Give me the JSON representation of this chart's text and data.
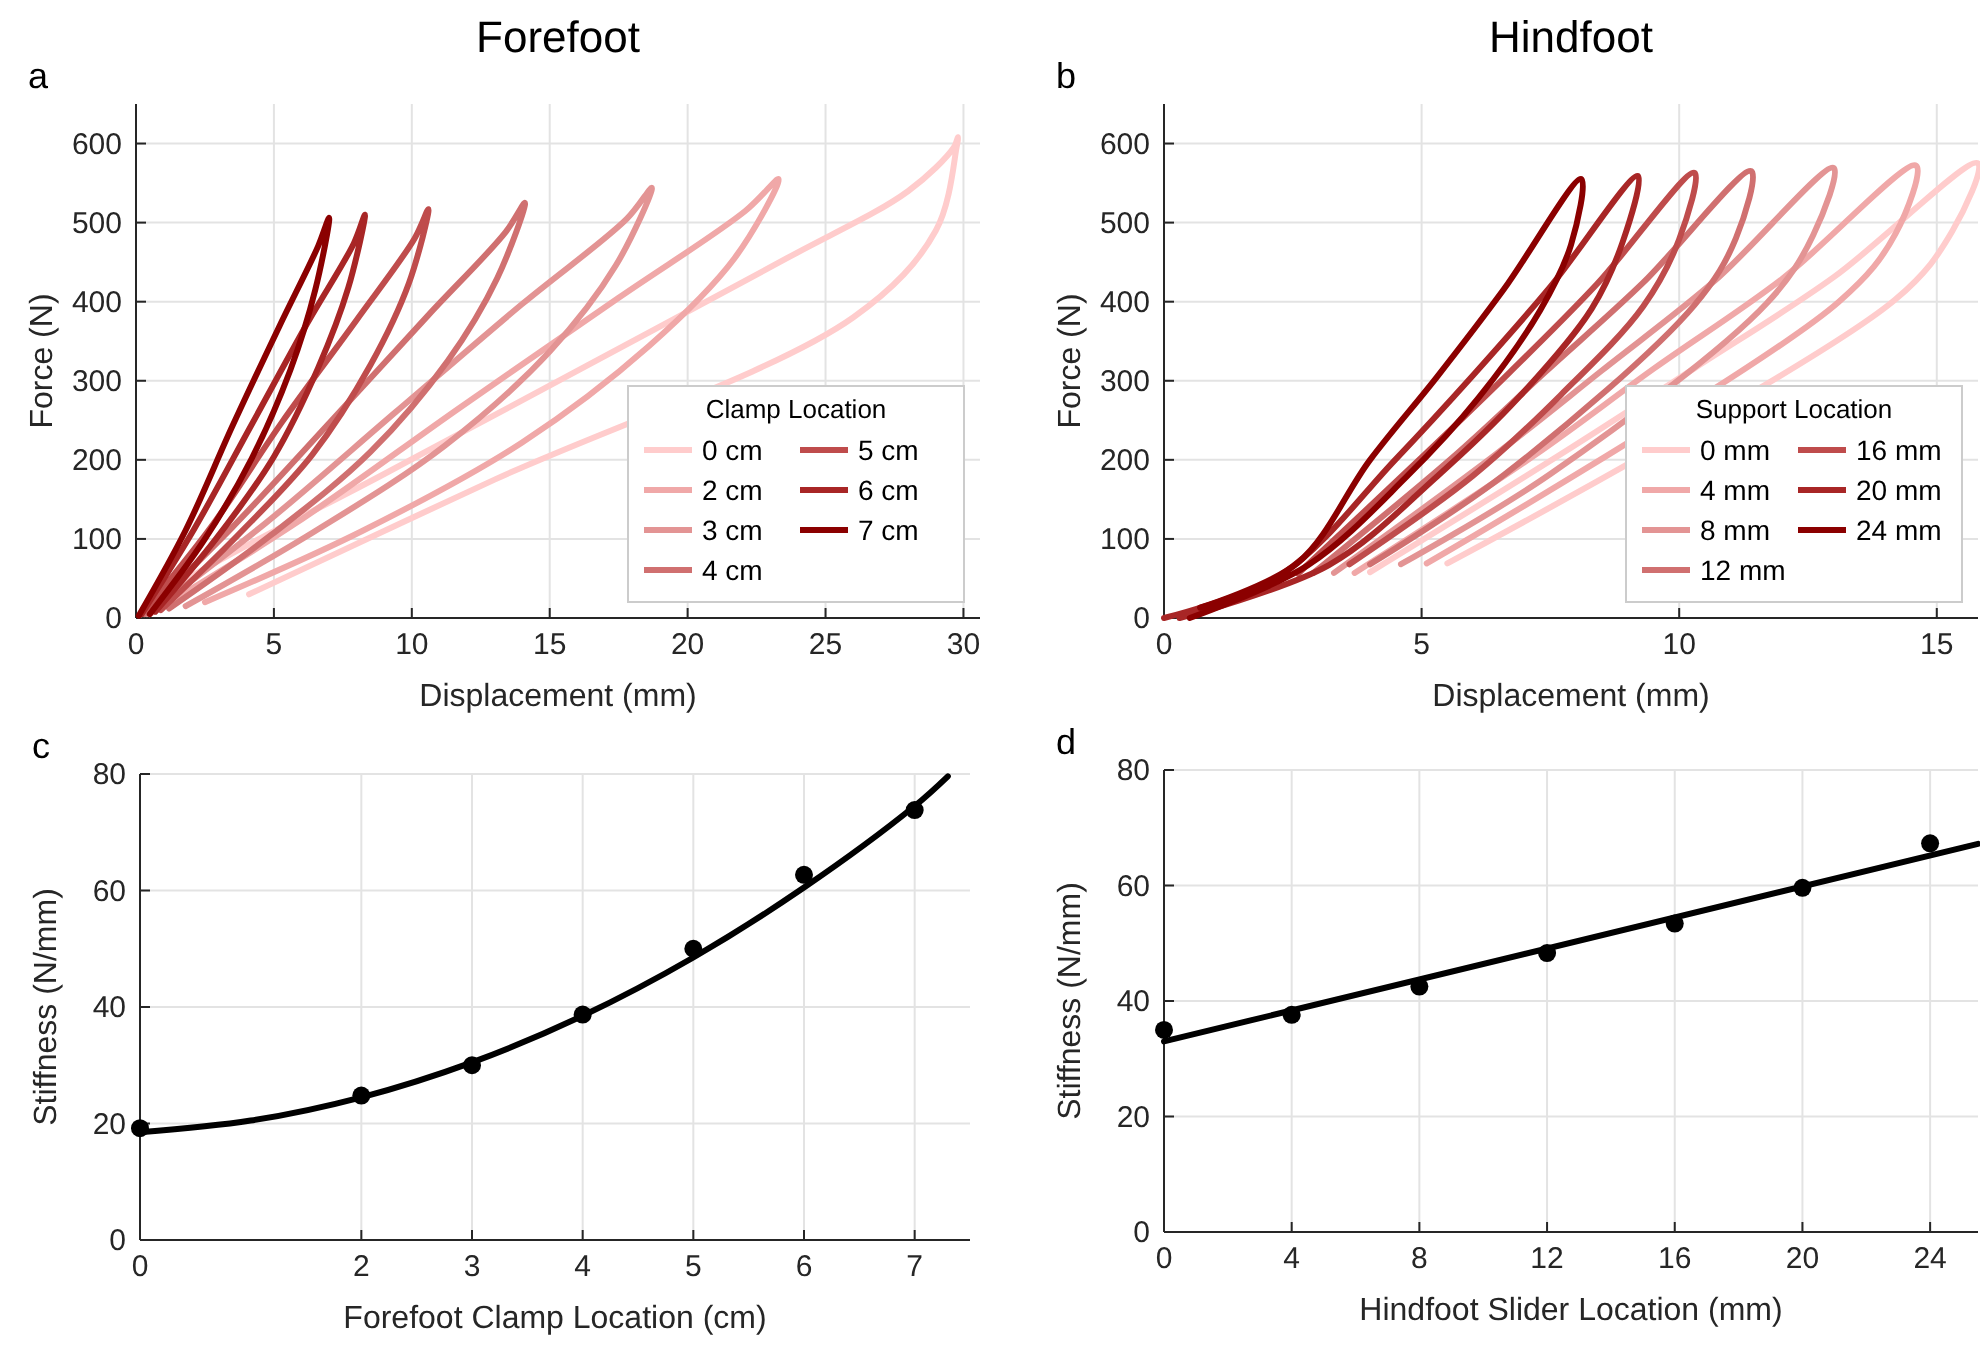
{
  "chart_data": [
    {
      "type": "line",
      "title": "Forefoot",
      "xlabel": "Displacement (mm)",
      "ylabel": "Force (N)",
      "annotations": [
        "a"
      ],
      "xlim": [
        0,
        30.6
      ],
      "ylim": [
        0,
        650
      ],
      "xticks": [
        0,
        5,
        10,
        15,
        20,
        25,
        30
      ],
      "yticks": [
        0,
        100,
        200,
        300,
        400,
        500,
        600
      ],
      "grid": true,
      "legend": "bottom right",
      "legend_title": "Clamp Location",
      "line_style": "solid",
      "series": [
        {
          "name": "0 cm",
          "color": "#ffcccc",
          "x": [
            4.1,
            13,
            26,
            29,
            29.75,
            29.8,
            29.65,
            28,
            23.6,
            16.4,
            9.1,
            1.8,
            0.2
          ],
          "values": [
            30,
            175,
            380,
            490,
            595,
            608,
            595,
            540,
            455,
            320,
            184,
            48,
            5
          ]
        },
        {
          "name": "2 cm",
          "color": "#f0a8a8",
          "x": [
            2.5,
            8.2,
            14,
            18.6,
            21.7,
            23.3,
            22.1,
            17.5,
            11.7,
            5.8,
            0.5
          ],
          "values": [
            20,
            110,
            222,
            344,
            455,
            555,
            515,
            405,
            265,
            120,
            5
          ]
        },
        {
          "name": "3 cm",
          "color": "#e39494",
          "x": [
            1.8,
            6.5,
            11.2,
            15,
            17.4,
            18.7,
            17.8,
            14,
            9.4,
            4.7,
            0.4
          ],
          "values": [
            15,
            110,
            218,
            337,
            446,
            544,
            505,
            397,
            260,
            120,
            5
          ]
        },
        {
          "name": "4 cm",
          "color": "#d07070",
          "x": [
            1.2,
            4.9,
            8.5,
            11.3,
            13.1,
            14.1,
            13.4,
            10.6,
            7.1,
            3.5,
            0.3
          ],
          "values": [
            12,
            105,
            210,
            325,
            430,
            525,
            488,
            383,
            250,
            115,
            5
          ]
        },
        {
          "name": "5 cm",
          "color": "#bf4c4c",
          "x": [
            0.9,
            3.7,
            6.4,
            8.5,
            9.9,
            10.6,
            10.1,
            8,
            5.3,
            2.7,
            0.2
          ],
          "values": [
            10,
            105,
            207,
            320,
            424,
            517,
            480,
            377,
            248,
            114,
            5
          ]
        },
        {
          "name": "6 cm",
          "color": "#a82626",
          "x": [
            0.7,
            2.9,
            5,
            6.6,
            7.7,
            8.3,
            7.9,
            6.2,
            4.2,
            2.1,
            0.2
          ],
          "values": [
            8,
            100,
            204,
            316,
            418,
            510,
            474,
            372,
            245,
            112,
            5
          ]
        },
        {
          "name": "7 cm",
          "color": "#8b0000",
          "x": [
            0.5,
            2.5,
            4.2,
            5.6,
            6.5,
            7,
            6.6,
            5.2,
            3.5,
            1.8,
            0.1
          ],
          "values": [
            5,
            100,
            202,
            314,
            415,
            506,
            470,
            369,
            243,
            111,
            3
          ]
        }
      ]
    },
    {
      "type": "line",
      "title": "Hindfoot",
      "xlabel": "Displacement (mm)",
      "ylabel": "Force (N)",
      "annotations": [
        "b"
      ],
      "xlim": [
        0,
        15.8
      ],
      "ylim": [
        0,
        650
      ],
      "xticks": [
        0,
        5,
        10,
        15
      ],
      "yticks": [
        0,
        100,
        200,
        300,
        400,
        500,
        600
      ],
      "grid": true,
      "legend": "bottom right",
      "legend_title": "Support Location",
      "line_style": "solid",
      "series": [
        {
          "name": "0 mm",
          "color": "#ffcccc",
          "x": [
            4,
            7.7,
            10.3,
            13,
            15.8,
            15.3,
            14.2,
            5.5
          ],
          "values": [
            58,
            207,
            316,
            431,
            575,
            489,
            403,
            69
          ]
        },
        {
          "name": "4 mm",
          "color": "#f0a8a8",
          "x": [
            3.7,
            7.2,
            9.5,
            12,
            14.6,
            14.2,
            13.1,
            5.1
          ],
          "values": [
            57,
            206,
            315,
            429,
            572,
            486,
            400,
            69
          ]
        },
        {
          "name": "8 mm",
          "color": "#e39494",
          "x": [
            3.3,
            6.4,
            8.5,
            10.7,
            13,
            12.6,
            11.7,
            7.5,
            4.6
          ],
          "values": [
            57,
            205,
            313,
            427,
            569,
            484,
            398,
            182,
            68
          ]
        },
        {
          "name": "12 mm",
          "color": "#d07070",
          "x": [
            2.9,
            5.6,
            7.4,
            9.3,
            11.4,
            11.1,
            10.3,
            6.6,
            4
          ],
          "values": [
            57,
            203,
            311,
            424,
            565,
            480,
            396,
            181,
            68
          ]
        },
        {
          "name": "16 mm",
          "color": "#bf4c4c",
          "x": [
            2.6,
            5,
            6.7,
            8.4,
            10.3,
            10,
            9.3,
            7.7,
            6,
            3.6
          ],
          "values": [
            56,
            203,
            310,
            422,
            563,
            479,
            394,
            282,
            180,
            68
          ]
        },
        {
          "name": "20 mm",
          "color": "#a82626",
          "x": [
            0,
            2.3,
            4.5,
            6,
            7.5,
            9.2,
            8.9,
            8.3,
            6.9,
            5.3,
            3.2,
            0.3
          ],
          "values": [
            0,
            56,
            201,
            307,
            419,
            559,
            475,
            391,
            280,
            179,
            67,
            0
          ]
        },
        {
          "name": "24 mm",
          "color": "#8b0000",
          "x": [
            0.7,
            2.6,
            4,
            5.3,
            6.6,
            8.1,
            7.9,
            7.3,
            6.1,
            4.7,
            2.8,
            0.5
          ],
          "values": [
            13,
            70,
            200,
            305,
            416,
            555,
            472,
            389,
            278,
            178,
            67,
            0
          ]
        }
      ]
    },
    {
      "type": "scatter",
      "xlabel": "Forefoot Clamp Location (cm)",
      "ylabel": "Stiffness (N/mm)",
      "annotations": [
        "c"
      ],
      "xlim": [
        0,
        7.5
      ],
      "ylim": [
        0,
        80
      ],
      "xticks": [
        0,
        2,
        3,
        4,
        5,
        6,
        7
      ],
      "yticks": [
        0,
        20,
        40,
        60,
        80
      ],
      "grid": true,
      "series": [
        {
          "color": "#000000",
          "marker": "circle",
          "x": [
            0,
            2,
            3,
            4,
            5,
            6,
            7
          ],
          "values": [
            19.2,
            24.8,
            30,
            38.7,
            50,
            62.7,
            73.8
          ]
        },
        {
          "type": "line",
          "color": "#000000",
          "x": [
            0,
            1,
            2,
            3,
            4,
            5,
            6,
            7,
            7.3
          ],
          "values": [
            18.5,
            20.5,
            24.5,
            30.5,
            38.5,
            48.5,
            60.5,
            74.5,
            79.6
          ]
        }
      ]
    },
    {
      "type": "scatter",
      "xlabel": "Hindfoot Slider Location (mm)",
      "ylabel": "Stiffness (N/mm)",
      "annotations": [
        "d"
      ],
      "xlim": [
        0,
        25.5
      ],
      "ylim": [
        0,
        80
      ],
      "xticks": [
        0,
        4,
        8,
        12,
        16,
        20,
        24
      ],
      "yticks": [
        0,
        20,
        40,
        60,
        80
      ],
      "grid": true,
      "series": [
        {
          "color": "#000000",
          "marker": "circle",
          "x": [
            0,
            4,
            8,
            12,
            16,
            20,
            24
          ],
          "values": [
            35,
            37.6,
            42.5,
            48.3,
            53.4,
            59.6,
            67.3
          ]
        },
        {
          "type": "line",
          "color": "#000000",
          "x": [
            0,
            25.5
          ],
          "values": [
            33,
            67.2
          ]
        }
      ]
    }
  ]
}
